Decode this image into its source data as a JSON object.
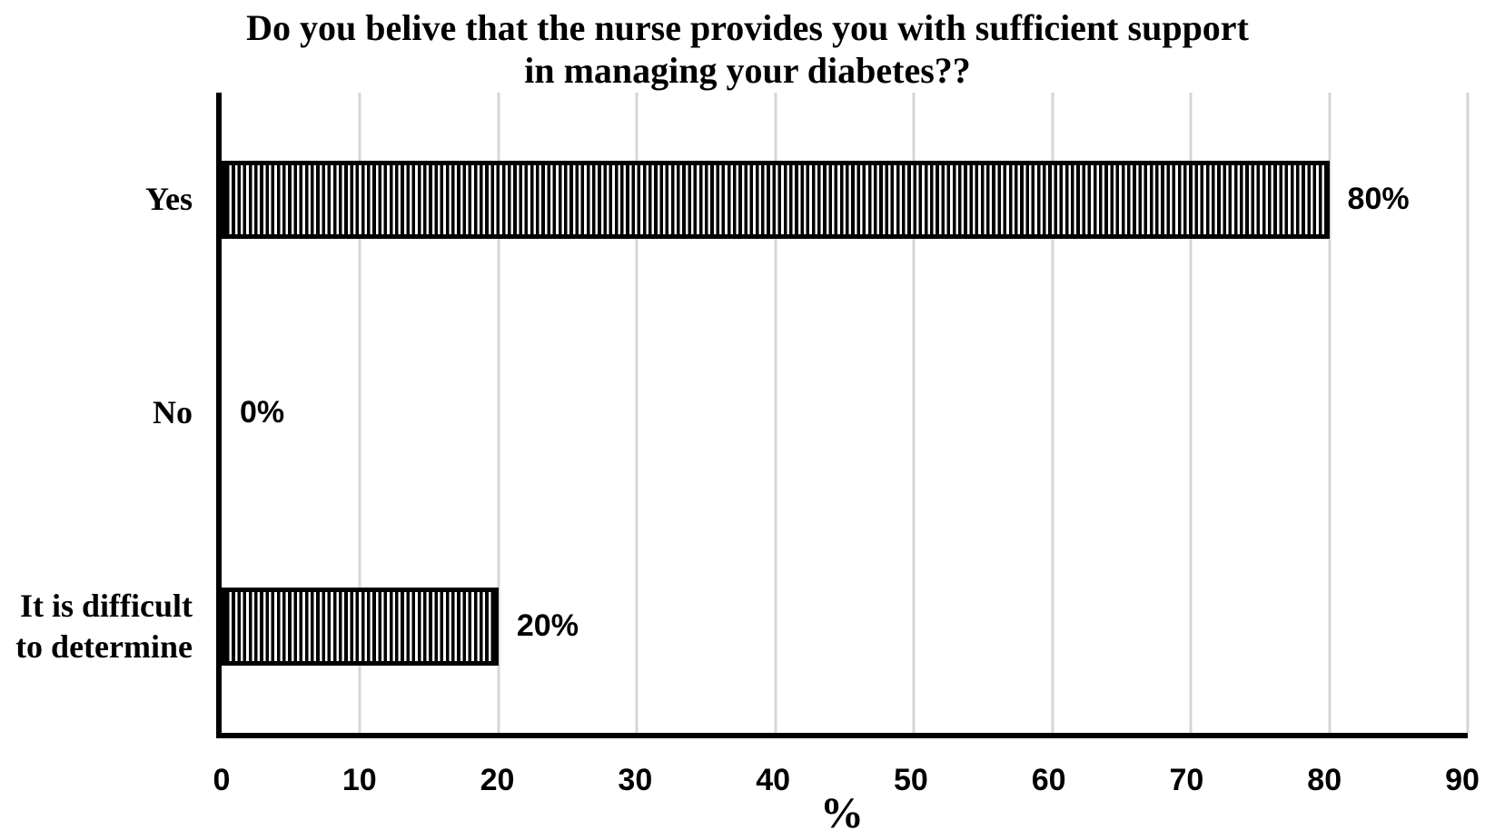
{
  "chart_data": {
    "type": "bar",
    "orientation": "horizontal",
    "title_lines": [
      "Do you belive that the nurse provides you with sufficient support",
      "in managing your diabetes??"
    ],
    "categories": [
      "Yes",
      "No",
      "It is difficult\nto determine"
    ],
    "values": [
      80,
      0,
      20
    ],
    "data_labels": [
      "80%",
      "0%",
      "20%"
    ],
    "xlabel": "%",
    "xlim": [
      0,
      90
    ],
    "xticks": [
      0,
      10,
      20,
      30,
      40,
      50,
      60,
      70,
      80,
      90
    ],
    "grid": "vertical gridlines at each x tick",
    "legend": "none",
    "bar_style": "vertical black hatch stripes on white with thick black border",
    "colors": {
      "bar_stripe": "#000000",
      "bar_background": "#ffffff",
      "bar_border": "#000000",
      "gridline": "#d6d6d6",
      "axis": "#000000",
      "text": "#000000",
      "background": "#ffffff"
    }
  }
}
